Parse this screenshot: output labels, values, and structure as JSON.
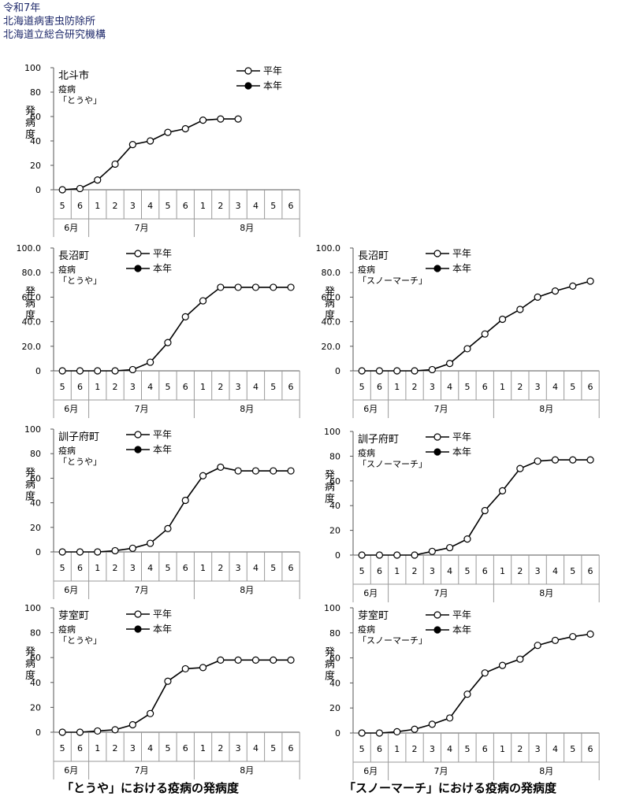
{
  "header": {
    "line1": "令和7年",
    "line2": "北海道病害虫防除所",
    "line3": "北海道立総合研究機構"
  },
  "captions": {
    "left": "「とうや」における疫病の発病度",
    "right": "「スノーマーチ」における疫病の発病度"
  },
  "legend": {
    "normal": "平年",
    "current": "本年"
  },
  "ylabel": "発病度",
  "x_ticks": [
    "5",
    "6",
    "1",
    "2",
    "3",
    "4",
    "5",
    "6",
    "1",
    "2",
    "3",
    "4",
    "5",
    "6"
  ],
  "months": [
    "6月",
    "7月",
    "8月"
  ],
  "chart_data": [
    {
      "type": "line",
      "title": "北斗市",
      "subtitle": "疫病",
      "variety": "「とうや」",
      "ylabel": "発病度",
      "ylim": [
        0,
        100
      ],
      "yticks": [
        "0",
        "20",
        "40",
        "60",
        "80",
        "100"
      ],
      "series": [
        {
          "name": "平年",
          "values": [
            0,
            1,
            8,
            21,
            37,
            40,
            47,
            50,
            57,
            58,
            58
          ]
        },
        {
          "name": "本年",
          "values": []
        }
      ]
    },
    {
      "type": "line",
      "title": "長沼町",
      "subtitle": "疫病",
      "variety": "「とうや」",
      "ylabel": "発病度",
      "ylim": [
        0,
        100
      ],
      "yticks": [
        "0",
        "20.0",
        "40.0",
        "60.0",
        "80.0",
        "100.0"
      ],
      "series": [
        {
          "name": "平年",
          "values": [
            0,
            0,
            0,
            0,
            1,
            7,
            23,
            44,
            57,
            68,
            68,
            68,
            68,
            68
          ]
        },
        {
          "name": "本年",
          "values": []
        }
      ]
    },
    {
      "type": "line",
      "title": "長沼町",
      "subtitle": "疫病",
      "variety": "「スノーマーチ」",
      "ylabel": "発病度",
      "ylim": [
        0,
        100
      ],
      "yticks": [
        "0",
        "20.0",
        "40.0",
        "60.0",
        "80.0",
        "100.0"
      ],
      "series": [
        {
          "name": "平年",
          "values": [
            0,
            0,
            0,
            0,
            1,
            6,
            18,
            30,
            42,
            50,
            60,
            65,
            69,
            73
          ]
        },
        {
          "name": "本年",
          "values": []
        }
      ]
    },
    {
      "type": "line",
      "title": "訓子府町",
      "subtitle": "疫病",
      "variety": "「とうや」",
      "ylabel": "発病度",
      "ylim": [
        0,
        100
      ],
      "yticks": [
        "0",
        "20",
        "40",
        "60",
        "80",
        "100"
      ],
      "series": [
        {
          "name": "平年",
          "values": [
            0,
            0,
            0,
            1,
            3,
            7,
            19,
            42,
            62,
            69,
            66,
            66,
            66,
            66
          ]
        },
        {
          "name": "本年",
          "values": []
        }
      ]
    },
    {
      "type": "line",
      "title": "訓子府町",
      "subtitle": "疫病",
      "variety": "「スノーマーチ」",
      "ylabel": "発病度",
      "ylim": [
        0,
        100
      ],
      "yticks": [
        "0",
        "20",
        "40",
        "60",
        "80",
        "100"
      ],
      "series": [
        {
          "name": "平年",
          "values": [
            0,
            0,
            0,
            0,
            3,
            6,
            13,
            36,
            52,
            70,
            76,
            77,
            77,
            77
          ]
        },
        {
          "name": "本年",
          "values": []
        }
      ]
    },
    {
      "type": "line",
      "title": "芽室町",
      "subtitle": "疫病",
      "variety": "「とうや」",
      "ylabel": "発病度",
      "ylim": [
        0,
        100
      ],
      "yticks": [
        "0",
        "20",
        "40",
        "60",
        "80",
        "100"
      ],
      "series": [
        {
          "name": "平年",
          "values": [
            0,
            0,
            1,
            2,
            6,
            15,
            41,
            51,
            52,
            58,
            58,
            58,
            58,
            58
          ]
        },
        {
          "name": "本年",
          "values": []
        }
      ]
    },
    {
      "type": "line",
      "title": "芽室町",
      "subtitle": "疫病",
      "variety": "「スノーマーチ」",
      "ylabel": "発病度",
      "ylim": [
        0,
        100
      ],
      "yticks": [
        "0",
        "20",
        "40",
        "60",
        "80",
        "100"
      ],
      "series": [
        {
          "name": "平年",
          "values": [
            0,
            0,
            1,
            3,
            7,
            12,
            31,
            48,
            54,
            59,
            70,
            74,
            77,
            79
          ]
        },
        {
          "name": "本年",
          "values": []
        }
      ]
    }
  ]
}
